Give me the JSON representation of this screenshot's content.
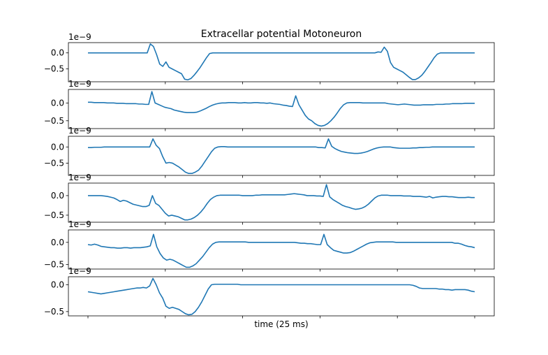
{
  "chart_data": {
    "type": "line",
    "title": "Extracellar potential Motoneuron",
    "xlabel": "time (25 ms)",
    "line_color": "#1f77b4",
    "grid": false,
    "x_ticks_count": 6,
    "panels": [
      {
        "offset_label": "1e−9",
        "y_ticks": [
          0.0,
          -0.5
        ],
        "y_tick_labels": [
          "0.0",
          "−0.5"
        ],
        "ylim": [
          -0.9,
          0.32
        ],
        "y": [
          0,
          0,
          0,
          0,
          0,
          0,
          0,
          0,
          0,
          0,
          0,
          0,
          0,
          0,
          0,
          0,
          0,
          0,
          0,
          0,
          0.28,
          0.2,
          -0.05,
          -0.35,
          -0.42,
          -0.28,
          -0.45,
          -0.5,
          -0.55,
          -0.6,
          -0.65,
          -0.82,
          -0.84,
          -0.8,
          -0.7,
          -0.58,
          -0.45,
          -0.3,
          -0.15,
          -0.02,
          0,
          0,
          0,
          0,
          0,
          0,
          0,
          0,
          0,
          0,
          0,
          0,
          0,
          0,
          0,
          0,
          0,
          0,
          0,
          0,
          0,
          0,
          0,
          0,
          0,
          0,
          0,
          0,
          0,
          0,
          0,
          0,
          0,
          0,
          0,
          0,
          0,
          0,
          0,
          0,
          0,
          0,
          0,
          0,
          0,
          0,
          0,
          0,
          0,
          0,
          0,
          0,
          0,
          0.03,
          0.02,
          0.18,
          0.05,
          -0.3,
          -0.45,
          -0.5,
          -0.55,
          -0.6,
          -0.68,
          -0.76,
          -0.83,
          -0.83,
          -0.78,
          -0.7,
          -0.58,
          -0.44,
          -0.3,
          -0.15,
          -0.04,
          0,
          0,
          0,
          0,
          0,
          0,
          0,
          0,
          0,
          0,
          0,
          0
        ]
      },
      {
        "offset_label": "1e−9",
        "y_ticks": [
          0.0,
          -0.5
        ],
        "y_tick_labels": [
          "0.0",
          "−0.5"
        ],
        "ylim": [
          -0.72,
          0.38
        ],
        "y": [
          0.02,
          0.02,
          0.01,
          0.01,
          0.01,
          0.01,
          0.0,
          0.0,
          0.0,
          -0.01,
          -0.01,
          -0.01,
          -0.02,
          -0.02,
          -0.02,
          -0.02,
          -0.03,
          -0.03,
          -0.04,
          -0.04,
          0.32,
          0.0,
          -0.04,
          -0.08,
          -0.12,
          -0.14,
          -0.16,
          -0.2,
          -0.22,
          -0.24,
          -0.26,
          -0.27,
          -0.27,
          -0.27,
          -0.26,
          -0.23,
          -0.19,
          -0.15,
          -0.1,
          -0.06,
          -0.03,
          -0.01,
          0.0,
          0.0,
          0.01,
          0.01,
          0.01,
          0.0,
          0.0,
          0.01,
          0.0,
          0.0,
          0.01,
          0.01,
          0.0,
          0.0,
          -0.01,
          0.0,
          -0.02,
          -0.03,
          -0.04,
          -0.06,
          -0.07,
          -0.09,
          -0.1,
          0.2,
          -0.05,
          -0.2,
          -0.35,
          -0.45,
          -0.5,
          -0.58,
          -0.63,
          -0.65,
          -0.63,
          -0.58,
          -0.5,
          -0.4,
          -0.28,
          -0.15,
          -0.05,
          0.0,
          0.01,
          0.01,
          0.01,
          0.01,
          0.0,
          0.0,
          0.0,
          0.0,
          0.0,
          0.0,
          0.0,
          0.0,
          -0.02,
          -0.03,
          -0.04,
          -0.05,
          -0.04,
          -0.03,
          -0.04,
          -0.05,
          -0.06,
          -0.06,
          -0.06,
          -0.05,
          -0.05,
          -0.05,
          -0.05,
          -0.04,
          -0.04,
          -0.04,
          -0.03,
          -0.03,
          -0.02,
          -0.02,
          -0.02,
          -0.02,
          -0.01,
          -0.01,
          -0.01,
          -0.01
        ]
      },
      {
        "offset_label": "1e−9",
        "y_ticks": [
          0.0,
          -0.5
        ],
        "y_tick_labels": [
          "0.0",
          "−0.5"
        ],
        "ylim": [
          -0.88,
          0.33
        ],
        "y": [
          -0.02,
          -0.02,
          -0.01,
          -0.01,
          -0.01,
          0.0,
          0.0,
          0.0,
          0.0,
          0.0,
          0.0,
          0.0,
          0.0,
          0.0,
          0.0,
          0.0,
          0.0,
          0.0,
          0.0,
          0.0,
          0.25,
          0.05,
          -0.05,
          -0.3,
          -0.5,
          -0.48,
          -0.5,
          -0.56,
          -0.62,
          -0.7,
          -0.78,
          -0.82,
          -0.82,
          -0.78,
          -0.72,
          -0.6,
          -0.45,
          -0.3,
          -0.15,
          -0.04,
          0.0,
          0.01,
          0.01,
          0.0,
          0.0,
          0.0,
          0.0,
          0.0,
          0.0,
          0.0,
          0.0,
          0.0,
          0.0,
          0.0,
          0.0,
          0.0,
          0.0,
          0.0,
          0.0,
          0.0,
          0.0,
          0.0,
          0.0,
          0.0,
          0.0,
          0.0,
          0.0,
          0.0,
          0.0,
          0.0,
          0.0,
          -0.02,
          -0.02,
          -0.03,
          0.25,
          0.02,
          -0.05,
          -0.1,
          -0.14,
          -0.16,
          -0.18,
          -0.19,
          -0.2,
          -0.2,
          -0.19,
          -0.17,
          -0.14,
          -0.1,
          -0.06,
          -0.03,
          -0.01,
          0.0,
          0.0,
          0.0,
          -0.02,
          -0.03,
          -0.04,
          -0.04,
          -0.04,
          -0.04,
          -0.03,
          -0.03,
          -0.02,
          -0.02,
          -0.01,
          -0.01,
          0.0,
          0.0,
          0.0,
          0.0,
          0.0,
          0.0,
          0.0,
          0.0,
          0.0,
          0.0,
          0.0,
          0.0,
          0.0,
          0.0
        ]
      },
      {
        "offset_label": "1e−9",
        "y_ticks": [
          0.0,
          -0.5
        ],
        "y_tick_labels": [
          "0.0",
          "−0.5"
        ],
        "ylim": [
          -0.68,
          0.32
        ],
        "y": [
          0.0,
          0.0,
          0.0,
          0.0,
          0.0,
          -0.01,
          -0.02,
          -0.04,
          -0.06,
          -0.1,
          -0.15,
          -0.12,
          -0.14,
          -0.18,
          -0.22,
          -0.24,
          -0.26,
          -0.28,
          -0.28,
          -0.25,
          0.0,
          -0.2,
          -0.25,
          -0.35,
          -0.45,
          -0.52,
          -0.5,
          -0.52,
          -0.54,
          -0.58,
          -0.62,
          -0.62,
          -0.6,
          -0.56,
          -0.5,
          -0.42,
          -0.32,
          -0.2,
          -0.1,
          -0.04,
          0.0,
          0.01,
          0.01,
          0.01,
          0.01,
          0.01,
          0.01,
          0.01,
          0.0,
          0.0,
          0.0,
          0.0,
          0.01,
          0.01,
          0.02,
          0.02,
          0.02,
          0.02,
          0.02,
          0.02,
          0.02,
          0.02,
          0.03,
          0.04,
          0.05,
          0.04,
          0.03,
          0.02,
          0.0,
          0.0,
          0.0,
          -0.01,
          -0.01,
          -0.02,
          0.28,
          -0.03,
          -0.1,
          -0.15,
          -0.2,
          -0.25,
          -0.28,
          -0.3,
          -0.33,
          -0.35,
          -0.34,
          -0.32,
          -0.28,
          -0.22,
          -0.14,
          -0.06,
          -0.01,
          0.01,
          0.01,
          0.01,
          0.0,
          0.0,
          0.0,
          0.0,
          -0.01,
          -0.01,
          -0.01,
          -0.02,
          -0.02,
          -0.02,
          -0.03,
          -0.04,
          -0.02,
          -0.06,
          -0.04,
          -0.03,
          -0.02,
          -0.02,
          -0.03,
          -0.03,
          -0.04,
          -0.05,
          -0.05,
          -0.05,
          -0.04,
          -0.05,
          -0.05
        ]
      },
      {
        "offset_label": "1e−9",
        "y_ticks": [
          0.0,
          -0.5
        ],
        "y_tick_labels": [
          "0.0",
          "−0.5"
        ],
        "ylim": [
          -0.6,
          0.28
        ],
        "y": [
          -0.05,
          -0.06,
          -0.04,
          -0.06,
          -0.09,
          -0.1,
          -0.11,
          -0.12,
          -0.12,
          -0.13,
          -0.13,
          -0.12,
          -0.12,
          -0.13,
          -0.12,
          -0.12,
          -0.12,
          -0.11,
          -0.1,
          -0.08,
          0.18,
          -0.1,
          -0.25,
          -0.35,
          -0.4,
          -0.38,
          -0.4,
          -0.44,
          -0.48,
          -0.52,
          -0.56,
          -0.56,
          -0.53,
          -0.48,
          -0.4,
          -0.32,
          -0.22,
          -0.12,
          -0.04,
          0.0,
          0.01,
          0.01,
          0.01,
          0.01,
          0.01,
          0.01,
          0.01,
          0.01,
          0.01,
          0.0,
          0.0,
          0.0,
          0.0,
          0.0,
          0.0,
          0.0,
          0.0,
          0.0,
          0.0,
          0.0,
          0.0,
          0.0,
          0.0,
          0.0,
          -0.01,
          -0.02,
          -0.02,
          -0.03,
          -0.03,
          -0.04,
          -0.05,
          -0.05,
          0.18,
          -0.05,
          -0.12,
          -0.18,
          -0.2,
          -0.22,
          -0.24,
          -0.24,
          -0.23,
          -0.2,
          -0.16,
          -0.12,
          -0.08,
          -0.04,
          -0.01,
          0.0,
          0.01,
          0.01,
          0.01,
          0.01,
          0.01,
          0.01,
          0.0,
          0.0,
          0.0,
          0.0,
          0.0,
          0.0,
          0.0,
          0.0,
          0.0,
          0.0,
          0.0,
          0.0,
          0.0,
          0.0,
          0.0,
          0.0,
          0.0,
          0.0,
          -0.02,
          -0.02,
          -0.04,
          -0.07,
          -0.09,
          -0.1,
          -0.12
        ]
      },
      {
        "offset_label": "1e−9",
        "y_ticks": [
          0.0,
          -0.5
        ],
        "y_tick_labels": [
          "0.0",
          "−0.5"
        ],
        "ylim": [
          -0.58,
          0.15
        ],
        "y": [
          -0.13,
          -0.14,
          -0.15,
          -0.16,
          -0.17,
          -0.16,
          -0.15,
          -0.14,
          -0.13,
          -0.12,
          -0.11,
          -0.1,
          -0.09,
          -0.08,
          -0.07,
          -0.06,
          -0.06,
          -0.05,
          -0.06,
          -0.02,
          0.12,
          0.0,
          -0.15,
          -0.25,
          -0.4,
          -0.44,
          -0.42,
          -0.44,
          -0.46,
          -0.5,
          -0.54,
          -0.56,
          -0.55,
          -0.5,
          -0.42,
          -0.32,
          -0.2,
          -0.08,
          0.0,
          0.01,
          0.01,
          0.01,
          0.01,
          0.01,
          0.01,
          0.01,
          0.01,
          0.0,
          0.0,
          0.0,
          0.0,
          0.0,
          0.0,
          0.0,
          0.0,
          0.0,
          0.0,
          0.0,
          0.0,
          0.0,
          0.0,
          0.0,
          0.0,
          0.0,
          0.0,
          0.0,
          0.0,
          0.0,
          0.0,
          0.0,
          0.0,
          0.0,
          0.0,
          0.0,
          0.0,
          0.0,
          0.0,
          0.0,
          0.0,
          0.0,
          0.0,
          0.0,
          0.0,
          0.0,
          0.0,
          0.0,
          0.0,
          0.0,
          0.0,
          0.0,
          0.0,
          0.0,
          0.0,
          0.0,
          0.0,
          0.0,
          0.0,
          0.0,
          0.0,
          0.0,
          -0.01,
          -0.03,
          -0.06,
          -0.07,
          -0.07,
          -0.07,
          -0.07,
          -0.07,
          -0.08,
          -0.08,
          -0.09,
          -0.09,
          -0.1,
          -0.09,
          -0.09,
          -0.09,
          -0.09,
          -0.1,
          -0.12,
          -0.13
        ]
      }
    ]
  }
}
